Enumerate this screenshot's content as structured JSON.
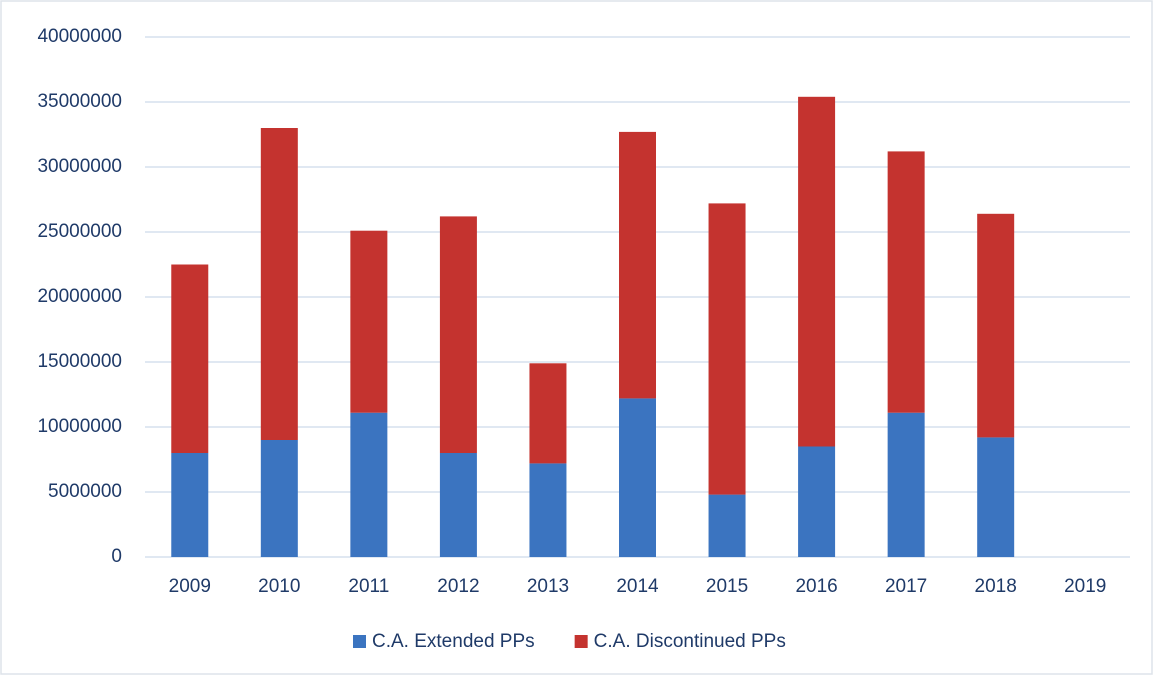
{
  "chart_data": {
    "type": "stacked_bar",
    "categories": [
      "2009",
      "2010",
      "2011",
      "2012",
      "2013",
      "2014",
      "2015",
      "2016",
      "2017",
      "2018",
      "2019"
    ],
    "series": [
      {
        "name": "C.A. Extended PPs",
        "color": "#3b74c0",
        "values": [
          8000000,
          9000000,
          11100000,
          8000000,
          7200000,
          12200000,
          4800000,
          8500000,
          11100000,
          9200000,
          null
        ]
      },
      {
        "name": "C.A. Discontinued PPs",
        "color": "#c4332f",
        "values": [
          14500000,
          24000000,
          14000000,
          18200000,
          7700000,
          20500000,
          22400000,
          26900000,
          20100000,
          17200000,
          null
        ]
      }
    ],
    "ylim": [
      0,
      40000000
    ],
    "yticks": [
      0,
      5000000,
      10000000,
      15000000,
      20000000,
      25000000,
      30000000,
      35000000,
      40000000
    ],
    "grid": true,
    "legend": "bottom"
  }
}
